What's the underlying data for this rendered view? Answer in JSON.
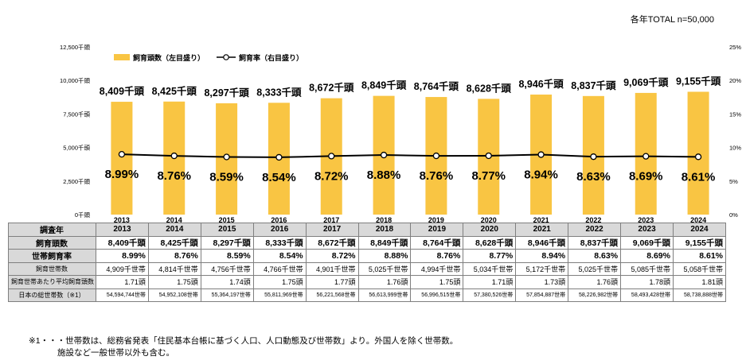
{
  "total_note": "各年TOTAL n=50,000",
  "chart_data": {
    "type": "bar",
    "categories": [
      "2013",
      "2014",
      "2015",
      "2016",
      "2017",
      "2018",
      "2019",
      "2020",
      "2021",
      "2022",
      "2023",
      "2024"
    ],
    "series": [
      {
        "name": "飼育頭数（左目盛り）",
        "type": "bar",
        "axis": "left",
        "values": [
          8409,
          8425,
          8297,
          8333,
          8672,
          8849,
          8764,
          8628,
          8946,
          8837,
          9069,
          9155
        ],
        "labels": [
          "8,409千頭",
          "8,425千頭",
          "8,297千頭",
          "8,333千頭",
          "8,672千頭",
          "8,849千頭",
          "8,764千頭",
          "8,628千頭",
          "8,946千頭",
          "8,837千頭",
          "9,069千頭",
          "9,155千頭"
        ]
      },
      {
        "name": "飼育率（右目盛り）",
        "type": "line",
        "axis": "right",
        "values": [
          8.99,
          8.76,
          8.59,
          8.54,
          8.72,
          8.88,
          8.76,
          8.77,
          8.94,
          8.63,
          8.69,
          8.61
        ],
        "labels": [
          "8.99%",
          "8.76%",
          "8.59%",
          "8.54%",
          "8.72%",
          "8.88%",
          "8.76%",
          "8.77%",
          "8.94%",
          "8.63%",
          "8.69%",
          "8.61%"
        ]
      }
    ],
    "y_left": {
      "range": [
        0,
        12500
      ],
      "ticks": [
        0,
        2500,
        5000,
        7500,
        10000,
        12500
      ],
      "tick_labels": [
        "0千頭",
        "2,500千頭",
        "5,000千頭",
        "7,500千頭",
        "10,000千頭",
        "12,500千頭"
      ]
    },
    "y_right": {
      "range": [
        0,
        25
      ],
      "ticks": [
        0,
        5,
        10,
        15,
        20,
        25
      ],
      "tick_labels": [
        "0%",
        "5%",
        "10%",
        "15%",
        "20%",
        "25%"
      ]
    },
    "colors": {
      "bar": "#f9c543",
      "line": "#000000",
      "marker_fill": "#ffffff"
    },
    "legend_placement": "top-left",
    "grid": false
  },
  "table": {
    "header_label": "調査年",
    "years": [
      "2013",
      "2014",
      "2015",
      "2016",
      "2017",
      "2018",
      "2019",
      "2020",
      "2021",
      "2022",
      "2023",
      "2024"
    ],
    "rows": [
      {
        "label": "飼育頭数",
        "style": "bold",
        "values": [
          "8,409千頭",
          "8,425千頭",
          "8,297千頭",
          "8,333千頭",
          "8,672千頭",
          "8,849千頭",
          "8,764千頭",
          "8,628千頭",
          "8,946千頭",
          "8,837千頭",
          "9,069千頭",
          "9,155千頭"
        ]
      },
      {
        "label": "世帯飼育率",
        "style": "bold",
        "values": [
          "8.99%",
          "8.76%",
          "8.59%",
          "8.54%",
          "8.72%",
          "8.88%",
          "8.76%",
          "8.77%",
          "8.94%",
          "8.63%",
          "8.69%",
          "8.61%"
        ]
      },
      {
        "label": "飼育世帯数",
        "style": "small",
        "values": [
          "4,909千世帯",
          "4,814千世帯",
          "4,756千世帯",
          "4,766千世帯",
          "4,901千世帯",
          "5,025千世帯",
          "4,994千世帯",
          "5,034千世帯",
          "5,172千世帯",
          "5,025千世帯",
          "5,085千世帯",
          "5,058千世帯"
        ]
      },
      {
        "label": "飼育世帯あたり平均飼育頭数",
        "style": "small",
        "values": [
          "1.71頭",
          "1.75頭",
          "1.74頭",
          "1.75頭",
          "1.77頭",
          "1.76頭",
          "1.75頭",
          "1.71頭",
          "1.73頭",
          "1.76頭",
          "1.78頭",
          "1.81頭"
        ]
      },
      {
        "label": "日本の総世帯数（※1）",
        "style": "tiny",
        "values": [
          "54,594,744世帯",
          "54,952,108世帯",
          "55,364,197世帯",
          "55,811,969世帯",
          "56,221,568世帯",
          "56,613,999世帯",
          "56,996,515世帯",
          "57,380,526世帯",
          "57,854,887世帯",
          "58,226,982世帯",
          "58,493,428世帯",
          "58,738,888世帯"
        ]
      }
    ]
  },
  "footnote": {
    "line1": "※1・・・世帯数は、総務省発表「住民基本台帳に基づく人口、人口動態及び世帯数」より。外国人を除く世帯数。",
    "line2": "施設など一般世帯以外も含む。"
  }
}
